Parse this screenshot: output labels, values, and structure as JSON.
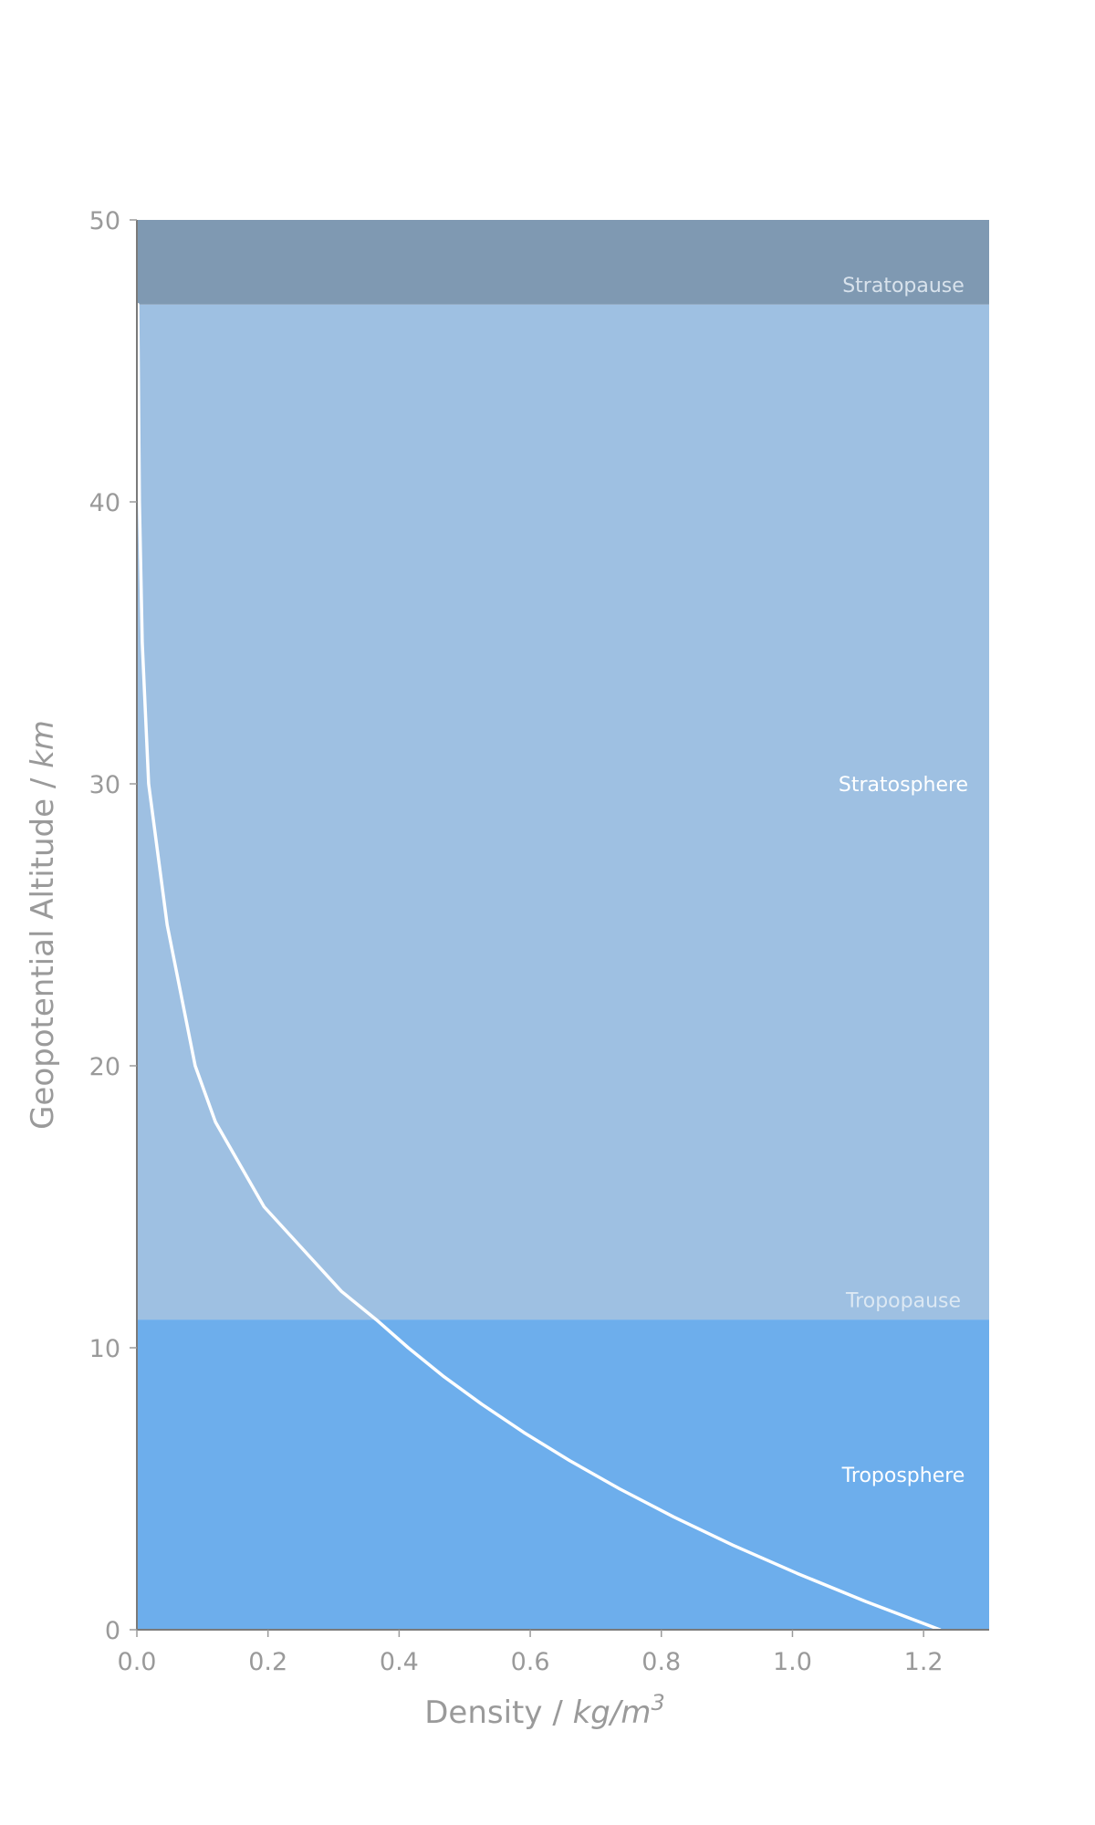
{
  "chart_data": {
    "type": "line",
    "title": "",
    "xlabel": {
      "text": "Density / ",
      "unit": "kg/m",
      "exponent": "3"
    },
    "ylabel": {
      "text": "Geopotential Altitude / ",
      "unit": "km"
    },
    "xlim": [
      0,
      1.3
    ],
    "ylim": [
      0,
      50
    ],
    "xticks": [
      "0.0",
      "0.2",
      "0.4",
      "0.6",
      "0.8",
      "1.0",
      "1.2"
    ],
    "xtick_values": [
      0,
      0.2,
      0.4,
      0.6,
      0.8,
      1.0,
      1.2
    ],
    "yticks": [
      "0",
      "10",
      "20",
      "30",
      "40",
      "50"
    ],
    "ytick_values": [
      0,
      10,
      20,
      30,
      40,
      50
    ],
    "grid": false,
    "legend": "none",
    "bands": [
      {
        "name": "Troposphere",
        "y0": 0,
        "y1": 11,
        "color": "#6daeec",
        "label_y": 5.5,
        "label_color": "#ffffff"
      },
      {
        "name": "Stratosphere",
        "y0": 11,
        "y1": 47,
        "color": "#9ec0e2",
        "label_y": 30,
        "label_color": "#ffffff"
      },
      {
        "name": "Stratopause",
        "y0": 47,
        "y1": 50,
        "color": "#7f99b2",
        "label_y": 47.7,
        "label_color": "#d8e2ec"
      }
    ],
    "boundary_labels": [
      {
        "text": "Tropopause",
        "y": 11.7,
        "color": "#dce8f3"
      }
    ],
    "series": [
      {
        "color": "#ffffff",
        "x": [
          1.225,
          1.112,
          1.007,
          0.909,
          0.819,
          0.736,
          0.66,
          0.59,
          0.526,
          0.467,
          0.414,
          0.365,
          0.312,
          0.194,
          0.12,
          0.0889,
          0.0462,
          0.018,
          0.0082,
          0.0039,
          0.0014
        ],
        "y": [
          0,
          1,
          2,
          3,
          4,
          5,
          6,
          7,
          8,
          9,
          10,
          11,
          12,
          15,
          18,
          20,
          25,
          30,
          35,
          40,
          47
        ]
      }
    ]
  }
}
